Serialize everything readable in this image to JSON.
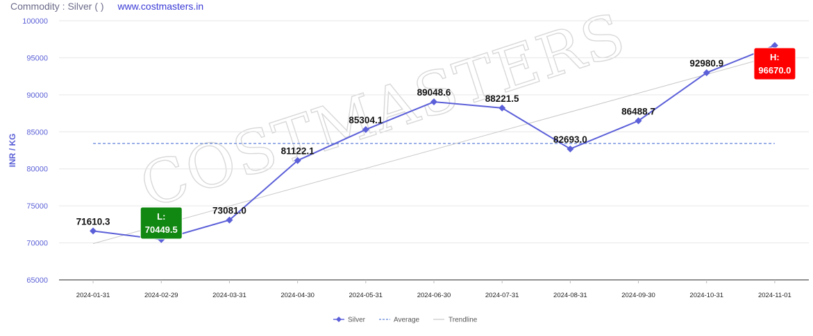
{
  "header": {
    "commodity_label": "Commodity : Silver ( )",
    "site": "www.costmasters.in"
  },
  "watermark": "COSTMASTERS",
  "chart_data": {
    "type": "line",
    "x": [
      "2024-01-31",
      "2024-02-29",
      "2024-03-31",
      "2024-04-30",
      "2024-05-31",
      "2024-06-30",
      "2024-07-31",
      "2024-08-31",
      "2024-09-30",
      "2024-10-31",
      "2024-11-01"
    ],
    "series": [
      {
        "name": "Silver",
        "color": "#5b5fd8",
        "marker": "diamond",
        "values": [
          71610.3,
          70449.5,
          73081.0,
          81122.1,
          85304.1,
          89048.6,
          88221.5,
          82693.0,
          86488.7,
          92980.9,
          96670.0
        ]
      }
    ],
    "data_labels": [
      "71610.3",
      "",
      "73081.0",
      "81122.1",
      "85304.1",
      "89048.6",
      "88221.5",
      "82693.0",
      "86488.7",
      "92980.9",
      ""
    ],
    "average": {
      "name": "Average",
      "value": 83426.3,
      "color": "#5b7fd8",
      "style": "dashed"
    },
    "trendline": {
      "name": "Trendline",
      "start": 69900,
      "end": 95300,
      "color": "#c8c8c8"
    },
    "low_marker": {
      "text": "L:",
      "value_text": "70449.5",
      "index": 1,
      "color": "#118811"
    },
    "high_marker": {
      "text": "H:",
      "value_text": "96670.0",
      "index": 10,
      "color": "#ff0000"
    },
    "ylabel": "INR / KG",
    "ylim": [
      65000,
      100000
    ],
    "yticks": [
      65000,
      70000,
      75000,
      80000,
      85000,
      90000,
      95000,
      100000
    ],
    "grid": true,
    "legend_position": "bottom-center"
  }
}
